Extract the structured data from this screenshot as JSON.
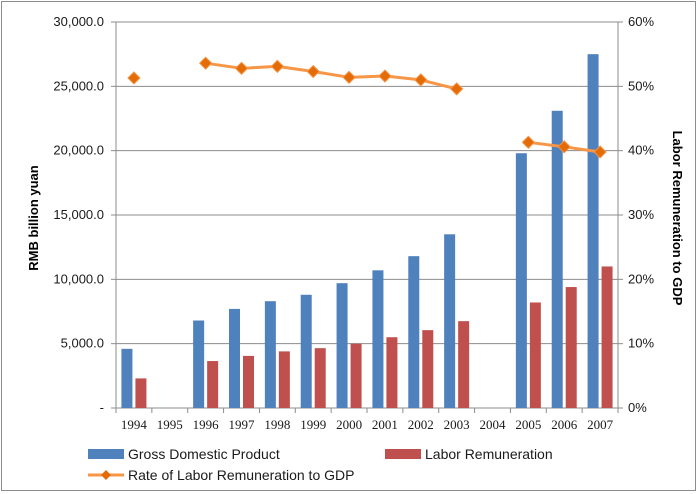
{
  "chart_data": {
    "type": "bar",
    "categories": [
      "1994",
      "1995",
      "1996",
      "1997",
      "1998",
      "1999",
      "2000",
      "2001",
      "2002",
      "2003",
      "2004",
      "2005",
      "2006",
      "2007"
    ],
    "series": [
      {
        "name": "Gross Domestic Product",
        "type": "bar",
        "axis": "left",
        "color": "#4f81bd",
        "values": [
          4600,
          null,
          6800,
          7700,
          8300,
          8800,
          9700,
          10700,
          11800,
          13500,
          null,
          19800,
          23100,
          27500
        ]
      },
      {
        "name": "Labor Remuneration",
        "type": "bar",
        "axis": "left",
        "color": "#c0504d",
        "values": [
          2300,
          null,
          3650,
          4050,
          4400,
          4650,
          5000,
          5500,
          6050,
          6750,
          null,
          8200,
          9400,
          11000
        ]
      },
      {
        "name": "Rate of Labor Remuneration to GDP",
        "type": "line",
        "axis": "right",
        "color": "#f79646",
        "marker": "diamond",
        "values": [
          51.3,
          null,
          53.6,
          52.8,
          53.1,
          52.3,
          51.4,
          51.6,
          51.0,
          49.6,
          null,
          41.3,
          40.6,
          39.8
        ]
      }
    ],
    "y_left": {
      "label": "RMB billion yuan",
      "min": 0,
      "max": 30000,
      "step": 5000,
      "ticks": [
        "-",
        "5,000.0",
        "10,000.0",
        "15,000.0",
        "20,000.0",
        "25,000.0",
        "30,000.0"
      ]
    },
    "y_right": {
      "label": "Labor Remuneration to GDP",
      "min": 0,
      "max": 60,
      "step": 10,
      "ticks": [
        "0%",
        "10%",
        "20%",
        "30%",
        "40%",
        "50%",
        "60%"
      ]
    },
    "grid": true,
    "legend_position": "bottom"
  }
}
